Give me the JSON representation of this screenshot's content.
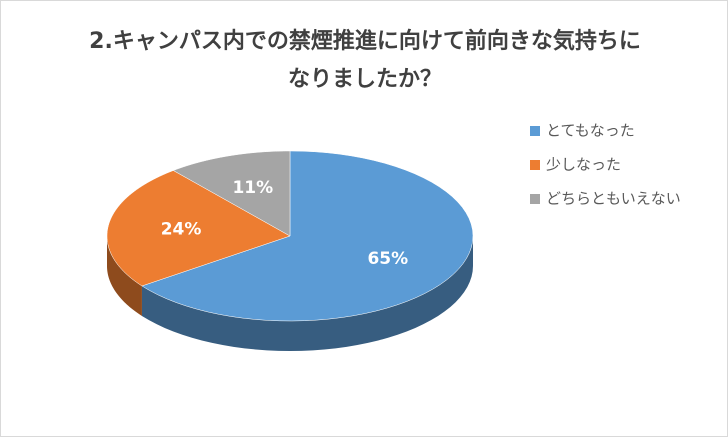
{
  "chart_data": {
    "type": "pie3d",
    "title": "2.キャンパス内での禁煙推進に向けて前向きな気持ちになりましたか？",
    "categories": [
      "とてもなった",
      "少しなった",
      "どちらともいえない"
    ],
    "values": [
      65,
      24,
      11
    ],
    "value_labels": [
      "65%",
      "24%",
      "11%"
    ],
    "colors": [
      "#5b9bd5",
      "#ed7d31",
      "#a5a5a5"
    ],
    "legend": "right"
  }
}
